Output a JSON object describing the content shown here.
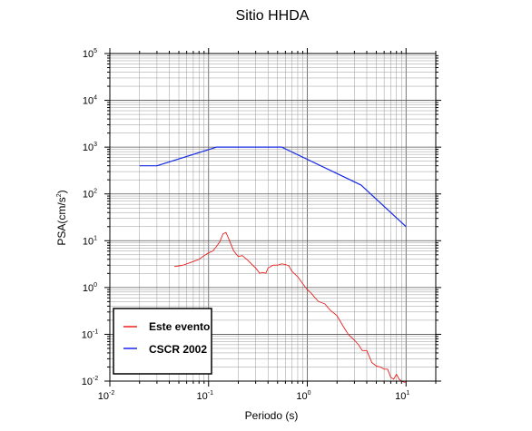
{
  "chart_data": {
    "type": "line",
    "title": "Sitio HHDA",
    "xlabel": "Periodo (s)",
    "ylabel": "PSA(cm/s²)",
    "ylabel_parts": {
      "prefix": "PSA(cm/s",
      "sup": "2",
      "suffix": ")"
    },
    "xscale": "log",
    "yscale": "log",
    "xlim": [
      0.01,
      20
    ],
    "ylim": [
      0.01,
      100000
    ],
    "grid": true,
    "legend_position": "bottom-left",
    "x_ticks": [
      {
        "base": "10",
        "exp": "-2",
        "value": 0.01
      },
      {
        "base": "10",
        "exp": "-1",
        "value": 0.1
      },
      {
        "base": "10",
        "exp": "0",
        "value": 1
      },
      {
        "base": "10",
        "exp": "1",
        "value": 10
      }
    ],
    "y_ticks": [
      {
        "base": "10",
        "exp": "-2",
        "value": 0.01
      },
      {
        "base": "10",
        "exp": "-1",
        "value": 0.1
      },
      {
        "base": "10",
        "exp": "0",
        "value": 1
      },
      {
        "base": "10",
        "exp": "1",
        "value": 10
      },
      {
        "base": "10",
        "exp": "2",
        "value": 100
      },
      {
        "base": "10",
        "exp": "3",
        "value": 1000
      },
      {
        "base": "10",
        "exp": "4",
        "value": 10000
      },
      {
        "base": "10",
        "exp": "5",
        "value": 100000
      }
    ],
    "series": [
      {
        "name": "Este evento",
        "color": "#e8201e",
        "x": [
          0.045,
          0.05,
          0.055,
          0.06,
          0.065,
          0.07,
          0.08,
          0.09,
          0.1,
          0.11,
          0.12,
          0.13,
          0.14,
          0.15,
          0.16,
          0.17,
          0.18,
          0.2,
          0.22,
          0.25,
          0.28,
          0.3,
          0.33,
          0.35,
          0.38,
          0.4,
          0.45,
          0.5,
          0.55,
          0.6,
          0.65,
          0.7,
          0.8,
          0.9,
          1.0,
          1.1,
          1.2,
          1.3,
          1.5,
          1.7,
          2.0,
          2.3,
          2.6,
          3.0,
          3.3,
          3.6,
          4.0,
          4.5,
          5.0,
          5.5,
          6.0,
          6.5,
          7.0,
          7.5,
          8.0,
          8.5,
          9.0,
          9.5,
          10.0
        ],
        "y": [
          2.8,
          2.9,
          3.0,
          3.2,
          3.4,
          3.6,
          4.0,
          4.8,
          5.5,
          6.0,
          7.5,
          9.5,
          14.0,
          15.0,
          11.0,
          8.0,
          6.0,
          4.6,
          4.8,
          3.8,
          3.0,
          2.6,
          2.0,
          2.1,
          2.0,
          2.6,
          3.0,
          3.0,
          3.2,
          3.1,
          2.9,
          2.2,
          1.7,
          1.2,
          0.9,
          0.75,
          0.6,
          0.5,
          0.45,
          0.33,
          0.25,
          0.15,
          0.1,
          0.075,
          0.06,
          0.045,
          0.045,
          0.025,
          0.021,
          0.02,
          0.018,
          0.018,
          0.012,
          0.011,
          0.014,
          0.011,
          0.01,
          0.0095,
          0.0095
        ]
      },
      {
        "name": "CSCR 2002",
        "color": "#1428e6",
        "x": [
          0.02,
          0.03,
          0.12,
          0.55,
          3.5,
          10.0
        ],
        "y": [
          400,
          400,
          1000,
          1000,
          155,
          20
        ]
      }
    ]
  }
}
